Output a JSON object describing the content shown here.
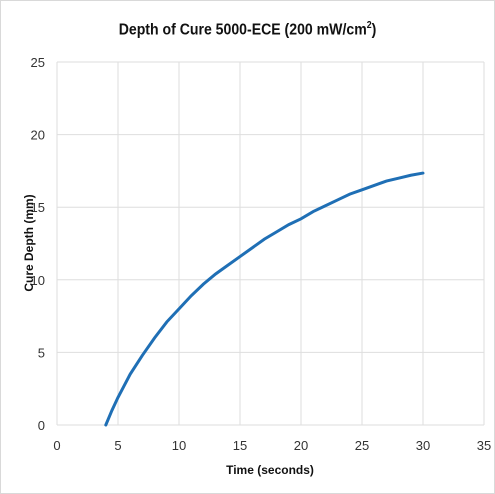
{
  "chart_data": {
    "type": "line",
    "title_main": "Depth of Cure 5000-ECE (200 mW/cm",
    "title_sup": "2",
    "title_end": ")",
    "xlabel": "Time (seconds)",
    "ylabel": "Cure Depth (mm)",
    "xlim": [
      0,
      35
    ],
    "ylim": [
      0,
      25
    ],
    "xticks": [
      0,
      5,
      10,
      15,
      20,
      25,
      30,
      35
    ],
    "yticks": [
      0,
      5,
      10,
      15,
      20,
      25
    ],
    "grid": true,
    "line_color": "#1f6fb5",
    "series": [
      {
        "x": [
          4,
          4.5,
          5,
          5.5,
          6,
          7,
          8,
          9,
          10,
          11,
          12,
          13,
          14,
          15,
          16,
          17,
          18,
          19,
          20,
          21,
          22,
          23,
          24,
          25,
          26,
          27,
          28,
          29,
          30
        ],
        "y": [
          0.0,
          1.0,
          1.9,
          2.7,
          3.5,
          4.8,
          6.0,
          7.1,
          8.0,
          8.9,
          9.7,
          10.4,
          11.0,
          11.6,
          12.2,
          12.8,
          13.3,
          13.8,
          14.2,
          14.7,
          15.1,
          15.5,
          15.9,
          16.2,
          16.5,
          16.8,
          17.0,
          17.2,
          17.35
        ]
      }
    ]
  }
}
